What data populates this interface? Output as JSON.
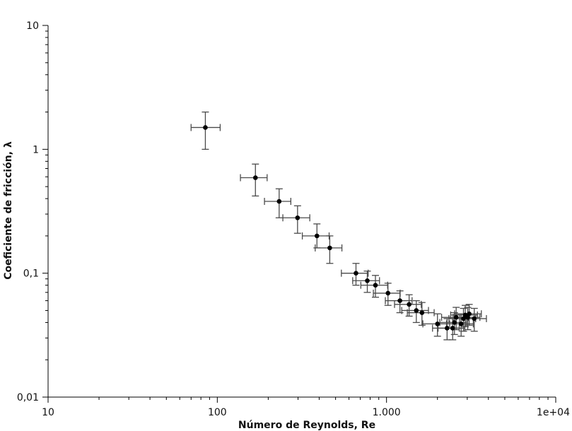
{
  "chart_data": {
    "type": "scatter",
    "xlabel": "Número de Reynolds, Re",
    "ylabel": "Coeficiente de fricción, λ",
    "xscale": "log",
    "yscale": "log",
    "xlim": [
      10,
      10000
    ],
    "ylim": [
      0.01,
      10
    ],
    "grid": false,
    "legend": "none",
    "x_ticks": [
      {
        "value": 10,
        "label": "10"
      },
      {
        "value": 100,
        "label": "100"
      },
      {
        "value": 1000,
        "label": "1.000"
      },
      {
        "value": 10000,
        "label": "1e+04"
      }
    ],
    "y_ticks": [
      {
        "value": 0.01,
        "label": "0,01"
      },
      {
        "value": 0.1,
        "label": "0,1"
      },
      {
        "value": 1,
        "label": "1"
      },
      {
        "value": 10,
        "label": "10"
      }
    ],
    "points": [
      {
        "x": 85,
        "y": 1.5,
        "xerr": [
          70,
          104
        ],
        "yerr": [
          1.0,
          2.0
        ]
      },
      {
        "x": 168,
        "y": 0.59,
        "xerr": [
          137,
          197
        ],
        "yerr": [
          0.42,
          0.76
        ]
      },
      {
        "x": 232,
        "y": 0.38,
        "xerr": [
          190,
          272
        ],
        "yerr": [
          0.28,
          0.48
        ]
      },
      {
        "x": 298,
        "y": 0.28,
        "xerr": [
          244,
          352
        ],
        "yerr": [
          0.21,
          0.35
        ]
      },
      {
        "x": 388,
        "y": 0.2,
        "xerr": [
          318,
          458
        ],
        "yerr": [
          0.16,
          0.25
        ]
      },
      {
        "x": 462,
        "y": 0.16,
        "xerr": [
          379,
          545
        ],
        "yerr": [
          0.12,
          0.2
        ]
      },
      {
        "x": 660,
        "y": 0.1,
        "xerr": [
          541,
          779
        ],
        "yerr": [
          0.08,
          0.12
        ]
      },
      {
        "x": 770,
        "y": 0.087,
        "xerr": [
          631,
          909
        ],
        "yerr": [
          0.07,
          0.104
        ]
      },
      {
        "x": 860,
        "y": 0.08,
        "xerr": [
          705,
          1015
        ],
        "yerr": [
          0.064,
          0.096
        ]
      },
      {
        "x": 1020,
        "y": 0.069,
        "xerr": [
          836,
          1204
        ],
        "yerr": [
          0.055,
          0.083
        ]
      },
      {
        "x": 1200,
        "y": 0.06,
        "xerr": [
          984,
          1416
        ],
        "yerr": [
          0.048,
          0.072
        ]
      },
      {
        "x": 1360,
        "y": 0.056,
        "xerr": [
          1115,
          1605
        ],
        "yerr": [
          0.045,
          0.067
        ]
      },
      {
        "x": 1500,
        "y": 0.05,
        "xerr": [
          1230,
          1770
        ],
        "yerr": [
          0.04,
          0.06
        ]
      },
      {
        "x": 1620,
        "y": 0.048,
        "xerr": [
          1328,
          1912
        ],
        "yerr": [
          0.038,
          0.058
        ]
      },
      {
        "x": 2000,
        "y": 0.039,
        "xerr": [
          1640,
          2360
        ],
        "yerr": [
          0.031,
          0.047
        ]
      },
      {
        "x": 2280,
        "y": 0.036,
        "xerr": [
          1870,
          2690
        ],
        "yerr": [
          0.029,
          0.043
        ]
      },
      {
        "x": 2460,
        "y": 0.036,
        "xerr": [
          2017,
          2903
        ],
        "yerr": [
          0.029,
          0.043
        ]
      },
      {
        "x": 2520,
        "y": 0.04,
        "xerr": [
          2066,
          2974
        ],
        "yerr": [
          0.032,
          0.048
        ]
      },
      {
        "x": 2580,
        "y": 0.044,
        "xerr": [
          2116,
          3044
        ],
        "yerr": [
          0.035,
          0.053
        ]
      },
      {
        "x": 2760,
        "y": 0.039,
        "xerr": [
          2263,
          3257
        ],
        "yerr": [
          0.031,
          0.047
        ]
      },
      {
        "x": 2850,
        "y": 0.043,
        "xerr": [
          2337,
          3363
        ],
        "yerr": [
          0.034,
          0.052
        ]
      },
      {
        "x": 2920,
        "y": 0.046,
        "xerr": [
          2394,
          3446
        ],
        "yerr": [
          0.037,
          0.055
        ]
      },
      {
        "x": 3020,
        "y": 0.044,
        "xerr": [
          2476,
          3564
        ],
        "yerr": [
          0.035,
          0.053
        ]
      },
      {
        "x": 3080,
        "y": 0.047,
        "xerr": [
          2526,
          3634
        ],
        "yerr": [
          0.038,
          0.056
        ]
      },
      {
        "x": 3300,
        "y": 0.043,
        "xerr": [
          2706,
          3894
        ],
        "yerr": [
          0.034,
          0.052
        ]
      }
    ],
    "colors": {
      "marker": "#000000",
      "errorbar": "#4a4a4a",
      "axis": "#000000"
    }
  }
}
